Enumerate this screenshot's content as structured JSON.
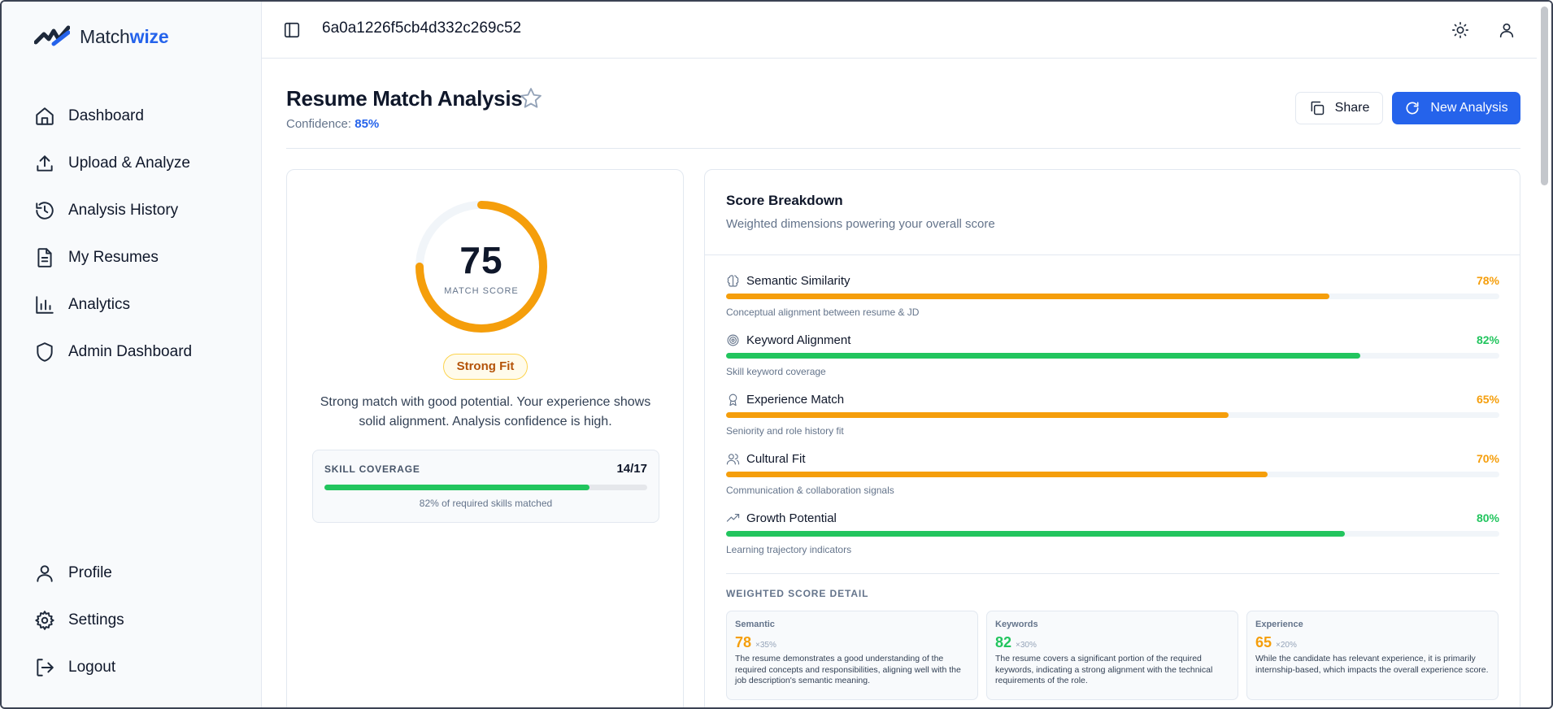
{
  "brand": {
    "name_prefix": "Match",
    "name_suffix": "wize"
  },
  "sidebar": {
    "items": [
      {
        "label": "Dashboard",
        "icon": "home-icon"
      },
      {
        "label": "Upload & Analyze",
        "icon": "upload-icon"
      },
      {
        "label": "Analysis History",
        "icon": "history-icon"
      },
      {
        "label": "My Resumes",
        "icon": "document-icon"
      },
      {
        "label": "Analytics",
        "icon": "bar-chart-icon"
      },
      {
        "label": "Admin Dashboard",
        "icon": "shield-icon"
      }
    ],
    "bottom_items": [
      {
        "label": "Profile",
        "icon": "user-icon"
      },
      {
        "label": "Settings",
        "icon": "gear-icon"
      },
      {
        "label": "Logout",
        "icon": "logout-icon"
      }
    ]
  },
  "topbar": {
    "analysis_id": "6a0a1226f5cb4d332c269c52"
  },
  "header": {
    "title": "Resume Match Analysis",
    "confidence_label": "Confidence:",
    "confidence_value": "85%",
    "share_label": "Share",
    "new_analysis_label": "New Analysis"
  },
  "score_card": {
    "score": "75",
    "score_fraction": 0.75,
    "score_label": "MATCH SCORE",
    "fit_label": "Strong Fit",
    "summary": "Strong match with good potential. Your experience shows solid alignment. Analysis confidence is high.",
    "skill_coverage_title": "SKILL COVERAGE",
    "skill_coverage_count": "14/17",
    "skill_coverage_fraction": 0.82,
    "skill_coverage_note": "82% of required skills matched"
  },
  "breakdown": {
    "title": "Score Breakdown",
    "subtitle": "Weighted dimensions powering your overall score",
    "dimensions": [
      {
        "name": "Semantic Similarity",
        "pct": "78%",
        "value": 78,
        "desc": "Conceptual alignment between resume & JD",
        "color": "#f59e0b",
        "icon": "brain-icon"
      },
      {
        "name": "Keyword Alignment",
        "pct": "82%",
        "value": 82,
        "desc": "Skill keyword coverage",
        "color": "#22c55e",
        "icon": "target-icon"
      },
      {
        "name": "Experience Match",
        "pct": "65%",
        "value": 65,
        "desc": "Seniority and role history fit",
        "color": "#f59e0b",
        "icon": "award-icon"
      },
      {
        "name": "Cultural Fit",
        "pct": "70%",
        "value": 70,
        "desc": "Communication & collaboration signals",
        "color": "#f59e0b",
        "icon": "users-icon"
      },
      {
        "name": "Growth Potential",
        "pct": "80%",
        "value": 80,
        "desc": "Learning trajectory indicators",
        "color": "#22c55e",
        "icon": "trending-up-icon"
      }
    ],
    "weighted_title": "WEIGHTED SCORE DETAIL",
    "weighted": [
      {
        "label": "Semantic",
        "score": "78",
        "weight": "×35%",
        "color": "#f59e0b",
        "text": "The resume demonstrates a good understanding of the required concepts and responsibilities, aligning well with the job description's semantic meaning."
      },
      {
        "label": "Keywords",
        "score": "82",
        "weight": "×30%",
        "color": "#22c55e",
        "text": "The resume covers a significant portion of the required keywords, indicating a strong alignment with the technical requirements of the role."
      },
      {
        "label": "Experience",
        "score": "65",
        "weight": "×20%",
        "color": "#f59e0b",
        "text": "While the candidate has relevant experience, it is primarily internship-based, which impacts the overall experience score."
      }
    ]
  },
  "colors": {
    "accent": "#2563eb",
    "amber": "#f59e0b",
    "green": "#22c55e"
  }
}
